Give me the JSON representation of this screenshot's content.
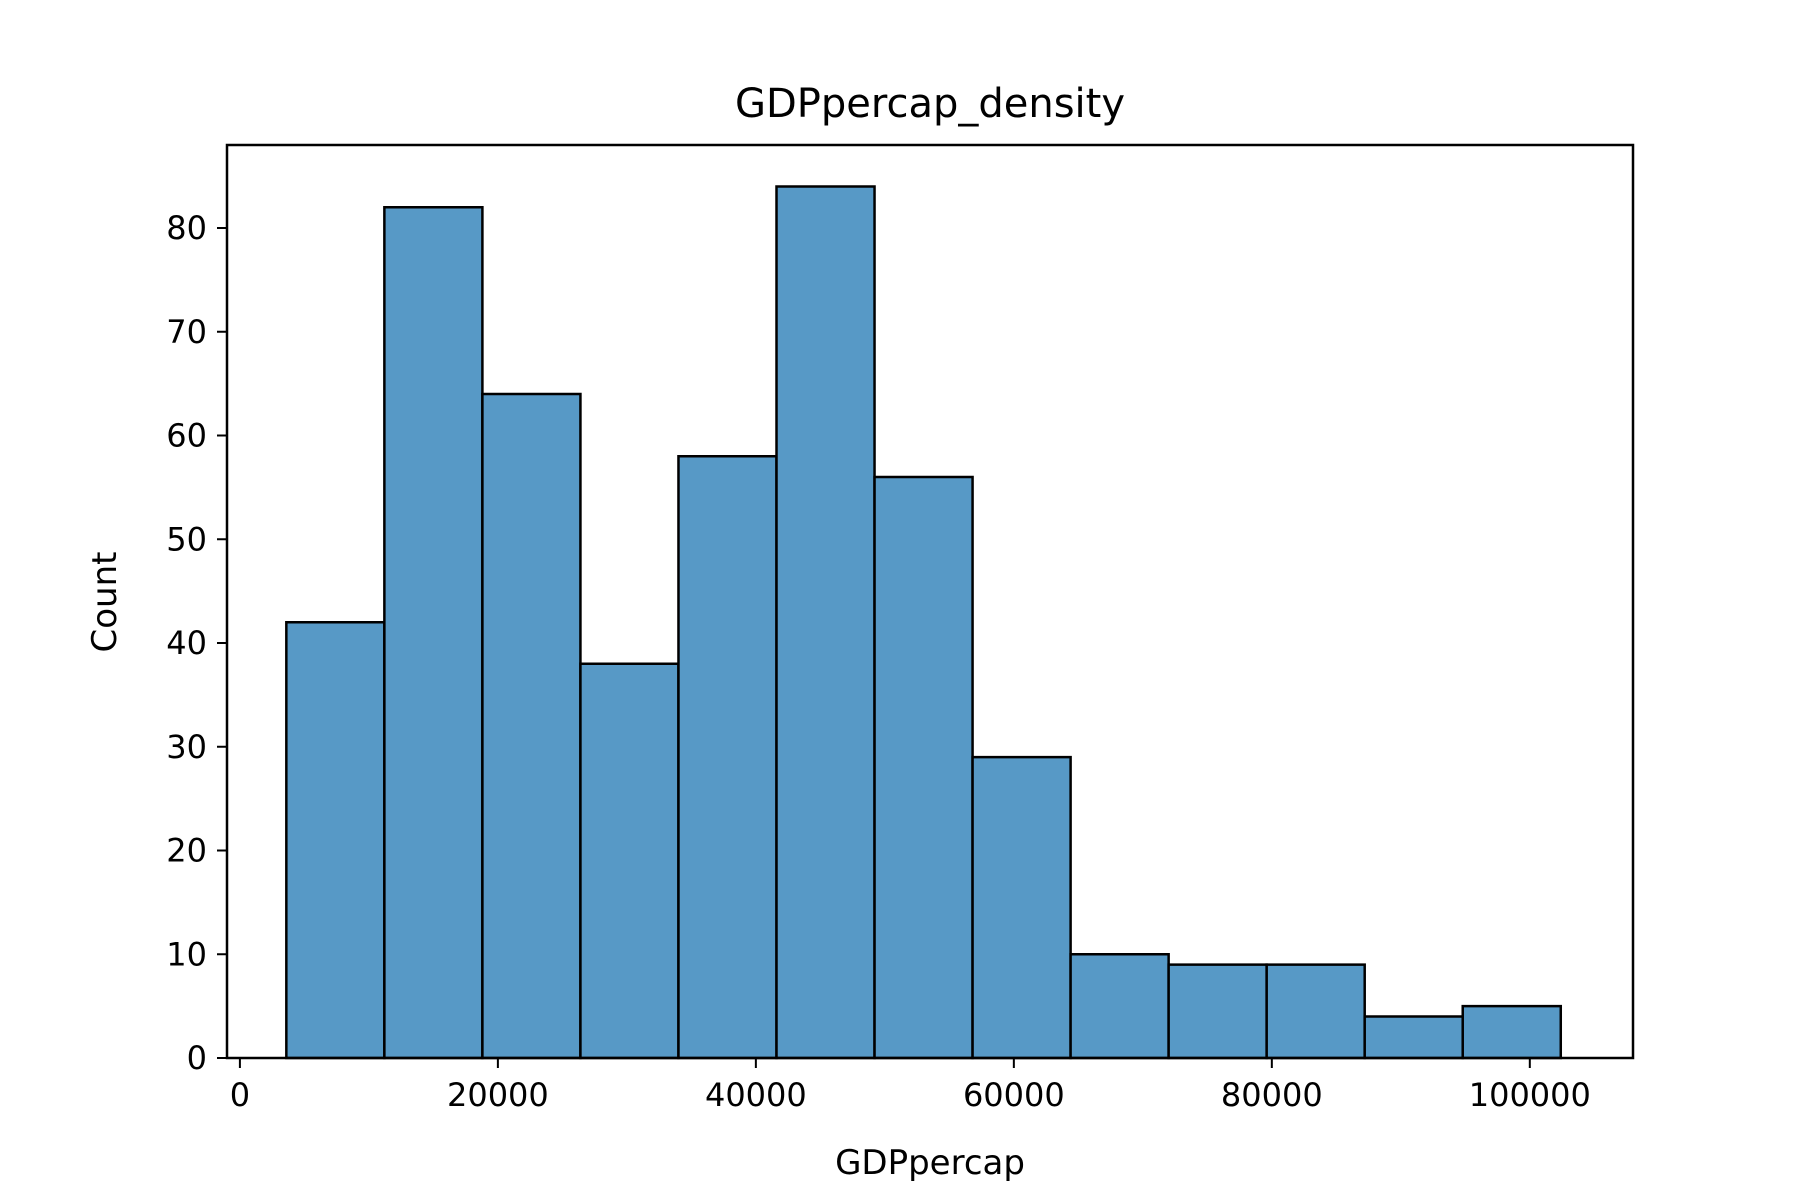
{
  "chart_data": {
    "type": "bar",
    "title": "GDPpercap_density",
    "xlabel": "GDPpercap",
    "ylabel": "Count",
    "xlim": [
      -1000,
      108000
    ],
    "ylim": [
      0,
      88
    ],
    "x_ticks": [
      0,
      20000,
      40000,
      60000,
      80000,
      100000
    ],
    "y_ticks": [
      0,
      10,
      20,
      30,
      40,
      50,
      60,
      70,
      80
    ],
    "bin_edges": [
      3600,
      11200,
      18800,
      26400,
      34000,
      41600,
      49200,
      56800,
      64400,
      72000,
      79600,
      87200,
      94800,
      102400
    ],
    "values": [
      42,
      82,
      64,
      38,
      58,
      84,
      56,
      29,
      10,
      9,
      9,
      4,
      5
    ],
    "bar_color": "#5799c6",
    "edge_color": "#000000",
    "grid": false,
    "legend": false
  }
}
